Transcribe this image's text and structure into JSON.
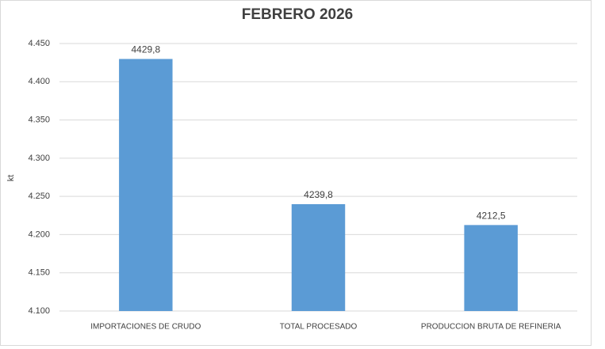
{
  "chart_data": {
    "type": "bar",
    "title": "FEBRERO 2026",
    "y_label": "kt",
    "categories": [
      "IMPORTACIONES DE CRUDO",
      "TOTAL PROCESADO",
      "PRODUCCION BRUTA DE REFINERIA"
    ],
    "values": [
      4429.8,
      4239.8,
      4212.5
    ],
    "value_labels": [
      "4429,8",
      "4239,8",
      "4212,5"
    ],
    "color": "#5b9bd5",
    "ylim": [
      4100,
      4450
    ],
    "yticks": [
      {
        "value": 4100,
        "label": "4.100"
      },
      {
        "value": 4150,
        "label": "4.150"
      },
      {
        "value": 4200,
        "label": "4.200"
      },
      {
        "value": 4250,
        "label": "4.250"
      },
      {
        "value": 4300,
        "label": "4.300"
      },
      {
        "value": 4350,
        "label": "4.350"
      },
      {
        "value": 4400,
        "label": "4.400"
      },
      {
        "value": 4450,
        "label": "4.450"
      }
    ],
    "grid": true
  }
}
